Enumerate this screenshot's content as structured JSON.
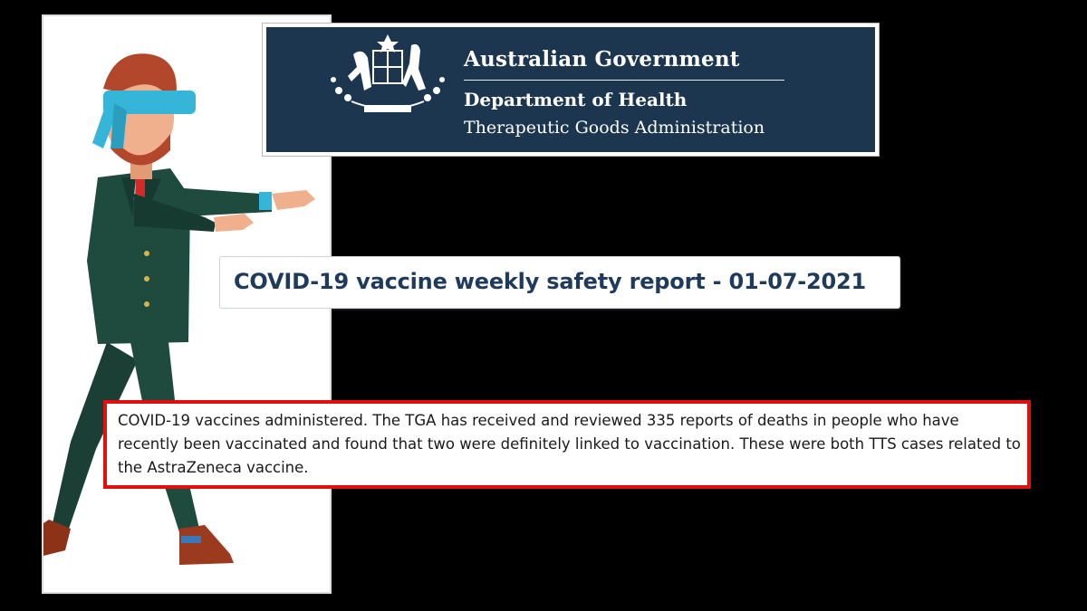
{
  "illustration": {
    "icon": "blindfolded-businessman-illustration",
    "colors": {
      "suit": "#1f4a3e",
      "blindfold": "#35b6d8",
      "hair": "#b3472c",
      "skin": "#f1b08d",
      "tie": "#d32a2a",
      "shoes": "#9b3a1e"
    }
  },
  "banner": {
    "crest_icon": "australian-coat-of-arms-icon",
    "background": "#1c3650",
    "title": "Australian Government",
    "department": "Department of Health",
    "agency": "Therapeutic Goods Administration"
  },
  "report": {
    "title": "COVID-19 vaccine weekly safety report - 01-07-2021",
    "title_color": "#1f3b5c"
  },
  "excerpt": {
    "text": "COVID-19 vaccines administered. The TGA has received and reviewed 335 reports of deaths in people who have recently been vaccinated and found that two were definitely linked to vaccination. These were both TTS cases related to the AstraZeneca vaccine.",
    "border_color": "#e01010"
  }
}
